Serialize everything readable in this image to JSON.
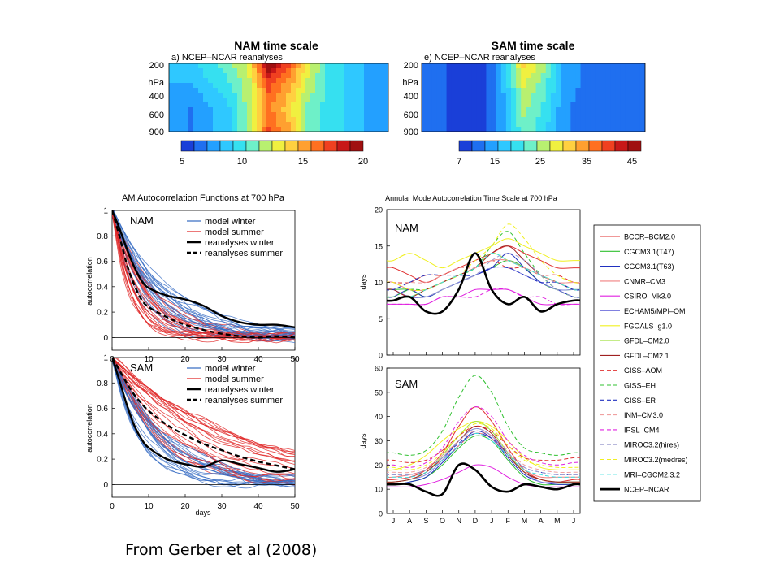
{
  "caption": "From Gerber et al (2008)",
  "panels": {
    "nam_scale": {
      "title": "NAM time scale",
      "subtitle": "a) NCEP–NCAR reanalyses",
      "y_ticks": [
        "200",
        "hPa",
        "400",
        "600",
        "900"
      ],
      "colorbar_ticks": [
        "5",
        "10",
        "15",
        "20"
      ]
    },
    "sam_scale": {
      "title": "SAM time scale",
      "subtitle": "e) NCEP–NCAR reanalyses",
      "y_ticks": [
        "200",
        "hPa",
        "400",
        "600",
        "900"
      ],
      "colorbar_ticks": [
        "7",
        "15",
        "25",
        "35",
        "45"
      ]
    },
    "acf": {
      "title": "AM Autocorrelation Functions at 700 hPa",
      "ylabel": "autocorrelation",
      "xlabel": "days",
      "legend": [
        "model winter",
        "model summer",
        "reanalyses winter",
        "reanalyses summer"
      ],
      "nam_label": "NAM",
      "sam_label": "SAM",
      "y_ticks": [
        "1",
        "0.8",
        "0.6",
        "0.4",
        "0.2",
        "0"
      ],
      "x_ticks": [
        "0",
        "10",
        "20",
        "30",
        "40",
        "50"
      ]
    },
    "timescale": {
      "title": "Annular Mode Autocorrelation Time Scale at 700 hPa",
      "ylabel": "days",
      "nam_label": "NAM",
      "sam_label": "SAM",
      "nam_y_ticks": [
        "0",
        "5",
        "10",
        "15",
        "20"
      ],
      "sam_y_ticks": [
        "0",
        "10",
        "20",
        "30",
        "40",
        "50",
        "60"
      ],
      "months": [
        "J",
        "A",
        "S",
        "O",
        "N",
        "D",
        "J",
        "F",
        "M",
        "A",
        "M",
        "J"
      ]
    }
  },
  "colors": {
    "cool_ramp": [
      "#1a3fd8",
      "#1f6ff0",
      "#23a0ff",
      "#2fc8ff",
      "#36e0f0",
      "#6ef0c8",
      "#b8f070",
      "#f0f040",
      "#ffd040",
      "#ffa030",
      "#ff7020",
      "#f04020",
      "#c81818",
      "#a01010"
    ],
    "winter": "#3a6fc4",
    "summer": "#e02828",
    "reanalysis": "#000000"
  },
  "chart_data": [
    {
      "type": "heatmap",
      "title": "NAM time scale",
      "subtitle": "a) NCEP–NCAR reanalyses",
      "x": [
        "J",
        "A",
        "S",
        "O",
        "N",
        "D",
        "J",
        "F",
        "M",
        "A",
        "M",
        "J"
      ],
      "y": [
        200,
        400,
        600,
        900
      ],
      "y_unit": "hPa",
      "colorbar_range": [
        5,
        20
      ],
      "colorbar_ticks": [
        5,
        10,
        15,
        20
      ],
      "values": [
        [
          9,
          9,
          10,
          11,
          13,
          20,
          17,
          13,
          10,
          9,
          8,
          8
        ],
        [
          8,
          8,
          9,
          10,
          12,
          17,
          15,
          12,
          10,
          9,
          8,
          8
        ],
        [
          8,
          7,
          8,
          9,
          12,
          16,
          14,
          11,
          10,
          9,
          8,
          8
        ],
        [
          8,
          7,
          8,
          9,
          12,
          17,
          15,
          11,
          10,
          9,
          8,
          8
        ]
      ]
    },
    {
      "type": "heatmap",
      "title": "SAM time scale",
      "subtitle": "e) NCEP–NCAR reanalyses",
      "x": [
        "J",
        "A",
        "S",
        "O",
        "N",
        "D",
        "J",
        "F",
        "M",
        "A",
        "M",
        "J"
      ],
      "y": [
        200,
        400,
        600,
        900
      ],
      "y_unit": "hPa",
      "colorbar_range": [
        7,
        45
      ],
      "colorbar_ticks": [
        7,
        15,
        25,
        35,
        45
      ],
      "values": [
        [
          12,
          10,
          8,
          8,
          16,
          30,
          24,
          14,
          12,
          11,
          10,
          11
        ],
        [
          11,
          10,
          8,
          8,
          15,
          26,
          22,
          14,
          12,
          11,
          10,
          11
        ],
        [
          11,
          10,
          8,
          8,
          14,
          24,
          20,
          13,
          11,
          11,
          10,
          11
        ],
        [
          11,
          10,
          8,
          8,
          14,
          22,
          19,
          13,
          11,
          11,
          10,
          11
        ]
      ]
    },
    {
      "type": "line",
      "title": "AM Autocorrelation Functions at 700 hPa",
      "label": "NAM",
      "xlabel": "",
      "ylabel": "autocorrelation",
      "xlim": [
        0,
        50
      ],
      "ylim": [
        -0.1,
        1
      ],
      "series": [
        {
          "name": "reanalyses winter",
          "x": [
            0,
            2,
            4,
            6,
            8,
            10,
            15,
            20,
            25,
            30,
            35,
            40,
            45,
            50
          ],
          "y": [
            1,
            0.86,
            0.7,
            0.56,
            0.45,
            0.39,
            0.33,
            0.3,
            0.25,
            0.17,
            0.12,
            0.1,
            0.1,
            0.08
          ]
        },
        {
          "name": "reanalyses summer",
          "x": [
            0,
            2,
            4,
            6,
            8,
            10,
            15,
            20,
            25,
            30,
            35,
            40,
            45,
            50
          ],
          "y": [
            1,
            0.8,
            0.58,
            0.42,
            0.3,
            0.24,
            0.16,
            0.1,
            0.06,
            0.03,
            0.01,
            0.0,
            0.01,
            0.0
          ]
        }
      ]
    },
    {
      "type": "line",
      "label": "SAM",
      "xlabel": "days",
      "ylabel": "autocorrelation",
      "xlim": [
        0,
        50
      ],
      "ylim": [
        -0.1,
        1
      ],
      "series": [
        {
          "name": "reanalyses winter",
          "x": [
            0,
            2,
            4,
            6,
            8,
            10,
            15,
            20,
            25,
            30,
            35,
            40,
            45,
            50
          ],
          "y": [
            1,
            0.82,
            0.63,
            0.47,
            0.36,
            0.29,
            0.2,
            0.16,
            0.14,
            0.19,
            0.16,
            0.13,
            0.1,
            0.12
          ]
        },
        {
          "name": "reanalyses summer",
          "x": [
            0,
            2,
            4,
            6,
            8,
            10,
            15,
            20,
            25,
            30,
            35,
            40,
            45,
            50
          ],
          "y": [
            1,
            0.9,
            0.8,
            0.71,
            0.64,
            0.58,
            0.47,
            0.39,
            0.32,
            0.27,
            0.22,
            0.18,
            0.15,
            0.12
          ]
        }
      ]
    },
    {
      "type": "line",
      "title": "Annular Mode Autocorrelation Time Scale at 700 hPa",
      "label": "NAM",
      "ylabel": "days",
      "x": [
        "J",
        "A",
        "S",
        "O",
        "N",
        "D",
        "J",
        "F",
        "M",
        "A",
        "M",
        "J"
      ],
      "ylim": [
        0,
        20
      ],
      "series": [
        {
          "name": "BCCR–BCM2.0",
          "values": [
            12,
            11,
            10,
            11,
            12,
            13,
            14,
            15,
            14,
            13,
            12,
            12
          ]
        },
        {
          "name": "CGCM3.1(T47)",
          "values": [
            9,
            9,
            8,
            9,
            10,
            11,
            12,
            13,
            12,
            10,
            9,
            9
          ]
        },
        {
          "name": "CGCM3.1(T63)",
          "values": [
            8,
            9,
            8,
            9,
            10,
            11,
            12,
            14,
            12,
            10,
            9,
            8
          ]
        },
        {
          "name": "CNMR–CM3",
          "values": [
            10,
            9,
            9,
            10,
            11,
            12,
            13,
            13,
            12,
            11,
            10,
            10
          ]
        },
        {
          "name": "CSIRO–Mk3.0",
          "values": [
            7,
            7,
            7,
            8,
            8,
            9,
            9,
            9,
            8,
            7,
            7,
            7
          ]
        },
        {
          "name": "ECHAM5/MPI–OM",
          "values": [
            9,
            8,
            8,
            9,
            10,
            11,
            12,
            12,
            11,
            10,
            9,
            9
          ]
        },
        {
          "name": "FGOALS–g1.0",
          "values": [
            13,
            14,
            13,
            12,
            13,
            14,
            15,
            16,
            15,
            14,
            13,
            13
          ]
        },
        {
          "name": "GFDL–CM2.0",
          "values": [
            8,
            8,
            9,
            10,
            11,
            12,
            14,
            13,
            12,
            11,
            10,
            9
          ]
        },
        {
          "name": "GFDL–CM2.1",
          "values": [
            9,
            8,
            9,
            10,
            11,
            12,
            14,
            15,
            13,
            11,
            10,
            9
          ]
        },
        {
          "name": "GISS–AOM",
          "values": [
            10,
            10,
            11,
            11,
            12,
            12,
            13,
            12,
            12,
            11,
            11,
            10
          ]
        },
        {
          "name": "GISS–EH",
          "values": [
            8,
            9,
            9,
            10,
            11,
            12,
            15,
            17,
            14,
            11,
            9,
            8
          ]
        },
        {
          "name": "GISS–ER",
          "values": [
            9,
            10,
            11,
            11,
            11,
            11,
            12,
            12,
            11,
            10,
            10,
            9
          ]
        },
        {
          "name": "INM–CM3.0",
          "values": [
            10,
            10,
            10,
            11,
            12,
            12,
            13,
            13,
            12,
            11,
            10,
            10
          ]
        },
        {
          "name": "IPSL–CM4",
          "values": [
            7,
            7,
            7,
            8,
            8,
            8,
            9,
            9,
            8,
            8,
            7,
            7
          ]
        },
        {
          "name": "MIROC3.2(hires)",
          "values": [
            8,
            8,
            8,
            9,
            10,
            11,
            13,
            14,
            13,
            11,
            9,
            8
          ]
        },
        {
          "name": "MIROC3.2(medres)",
          "values": [
            10,
            9,
            9,
            10,
            11,
            13,
            15,
            18,
            16,
            13,
            11,
            10
          ]
        },
        {
          "name": "MRI–CGCM2.3.2",
          "values": [
            8,
            8,
            9,
            10,
            11,
            12,
            14,
            13,
            12,
            11,
            10,
            9
          ]
        },
        {
          "name": "NCEP–NCAR",
          "values": [
            7.5,
            8,
            6,
            6,
            9,
            14,
            9,
            7,
            8,
            6,
            7,
            7.5
          ]
        }
      ]
    },
    {
      "type": "line",
      "label": "SAM",
      "ylabel": "days",
      "x": [
        "J",
        "A",
        "S",
        "O",
        "N",
        "D",
        "J",
        "F",
        "M",
        "A",
        "M",
        "J"
      ],
      "ylim": [
        0,
        60
      ],
      "series": [
        {
          "name": "BCCR–BCM2.0",
          "values": [
            14,
            15,
            18,
            25,
            36,
            44,
            38,
            27,
            18,
            14,
            13,
            14
          ]
        },
        {
          "name": "CGCM3.1(T47)",
          "values": [
            12,
            13,
            15,
            20,
            27,
            32,
            30,
            22,
            15,
            12,
            12,
            12
          ]
        },
        {
          "name": "CGCM3.1(T63)",
          "values": [
            12,
            13,
            15,
            21,
            28,
            34,
            31,
            23,
            16,
            13,
            12,
            12
          ]
        },
        {
          "name": "CNMR–CM3",
          "values": [
            15,
            16,
            18,
            22,
            28,
            33,
            31,
            24,
            18,
            15,
            15,
            15
          ]
        },
        {
          "name": "CSIRO–Mk3.0",
          "values": [
            11,
            11,
            12,
            14,
            17,
            20,
            19,
            15,
            12,
            11,
            11,
            11
          ]
        },
        {
          "name": "ECHAM5/MPI–OM",
          "values": [
            13,
            14,
            16,
            22,
            30,
            35,
            32,
            24,
            17,
            13,
            13,
            13
          ]
        },
        {
          "name": "FGOALS–g1.0",
          "values": [
            18,
            20,
            24,
            30,
            35,
            38,
            36,
            30,
            23,
            19,
            18,
            18
          ]
        },
        {
          "name": "GFDL–CM2.0",
          "values": [
            13,
            14,
            17,
            24,
            32,
            38,
            34,
            25,
            17,
            14,
            13,
            13
          ]
        },
        {
          "name": "GFDL–CM2.1",
          "values": [
            13,
            14,
            17,
            23,
            30,
            36,
            33,
            24,
            17,
            14,
            13,
            13
          ]
        },
        {
          "name": "GISS–AOM",
          "values": [
            22,
            21,
            22,
            26,
            32,
            36,
            34,
            28,
            23,
            22,
            22,
            23
          ]
        },
        {
          "name": "GISS–EH",
          "values": [
            25,
            24,
            26,
            34,
            48,
            57,
            50,
            36,
            27,
            25,
            24,
            25
          ]
        },
        {
          "name": "GISS–ER",
          "values": [
            16,
            16,
            18,
            23,
            29,
            33,
            31,
            25,
            19,
            17,
            16,
            16
          ]
        },
        {
          "name": "INM–CM3.0",
          "values": [
            17,
            17,
            19,
            24,
            30,
            34,
            32,
            26,
            20,
            18,
            17,
            17
          ]
        },
        {
          "name": "IPSL–CM4",
          "values": [
            20,
            19,
            21,
            27,
            38,
            44,
            40,
            30,
            24,
            21,
            20,
            21
          ]
        },
        {
          "name": "MIROC3.2(hires)",
          "values": [
            16,
            16,
            18,
            23,
            30,
            35,
            32,
            25,
            19,
            17,
            16,
            16
          ]
        },
        {
          "name": "MIROC3.2(medres)",
          "values": [
            19,
            18,
            20,
            25,
            32,
            37,
            35,
            28,
            22,
            20,
            19,
            19
          ]
        },
        {
          "name": "MRI–CGCM2.3.2",
          "values": [
            15,
            15,
            17,
            22,
            28,
            33,
            30,
            24,
            18,
            16,
            15,
            15
          ]
        },
        {
          "name": "NCEP–NCAR",
          "values": [
            12,
            12,
            9,
            8,
            20,
            18,
            11,
            9,
            12,
            11,
            10,
            12
          ]
        }
      ]
    }
  ],
  "legend_items": [
    {
      "name": "BCCR–BCM2.0",
      "color": "#e03030",
      "dash": false
    },
    {
      "name": "CGCM3.1(T47)",
      "color": "#30c030",
      "dash": false
    },
    {
      "name": "CGCM3.1(T63)",
      "color": "#2030c0",
      "dash": false
    },
    {
      "name": "CNMR–CM3",
      "color": "#f08080",
      "dash": false
    },
    {
      "name": "CSIRO–Mk3.0",
      "color": "#e020e0",
      "dash": false
    },
    {
      "name": "ECHAM5/MPI–OM",
      "color": "#8080e0",
      "dash": false
    },
    {
      "name": "FGOALS–g1.0",
      "color": "#f0f020",
      "dash": false
    },
    {
      "name": "GFDL–CM2.0",
      "color": "#a0e040",
      "dash": false
    },
    {
      "name": "GFDL–CM2.1",
      "color": "#a02020",
      "dash": false
    },
    {
      "name": "GISS–AOM",
      "color": "#e03030",
      "dash": true
    },
    {
      "name": "GISS–EH",
      "color": "#30c030",
      "dash": true
    },
    {
      "name": "GISS–ER",
      "color": "#2030c0",
      "dash": true
    },
    {
      "name": "INM–CM3.0",
      "color": "#f0a0a0",
      "dash": true
    },
    {
      "name": "IPSL–CM4",
      "color": "#e020e0",
      "dash": true
    },
    {
      "name": "MIROC3.2(hires)",
      "color": "#a0a0d0",
      "dash": true
    },
    {
      "name": "MIROC3.2(medres)",
      "color": "#f0f020",
      "dash": true
    },
    {
      "name": "MRI–CGCM2.3.2",
      "color": "#40e0e0",
      "dash": true
    },
    {
      "name": "NCEP–NCAR",
      "color": "#000000",
      "dash": false,
      "bold": true
    }
  ]
}
